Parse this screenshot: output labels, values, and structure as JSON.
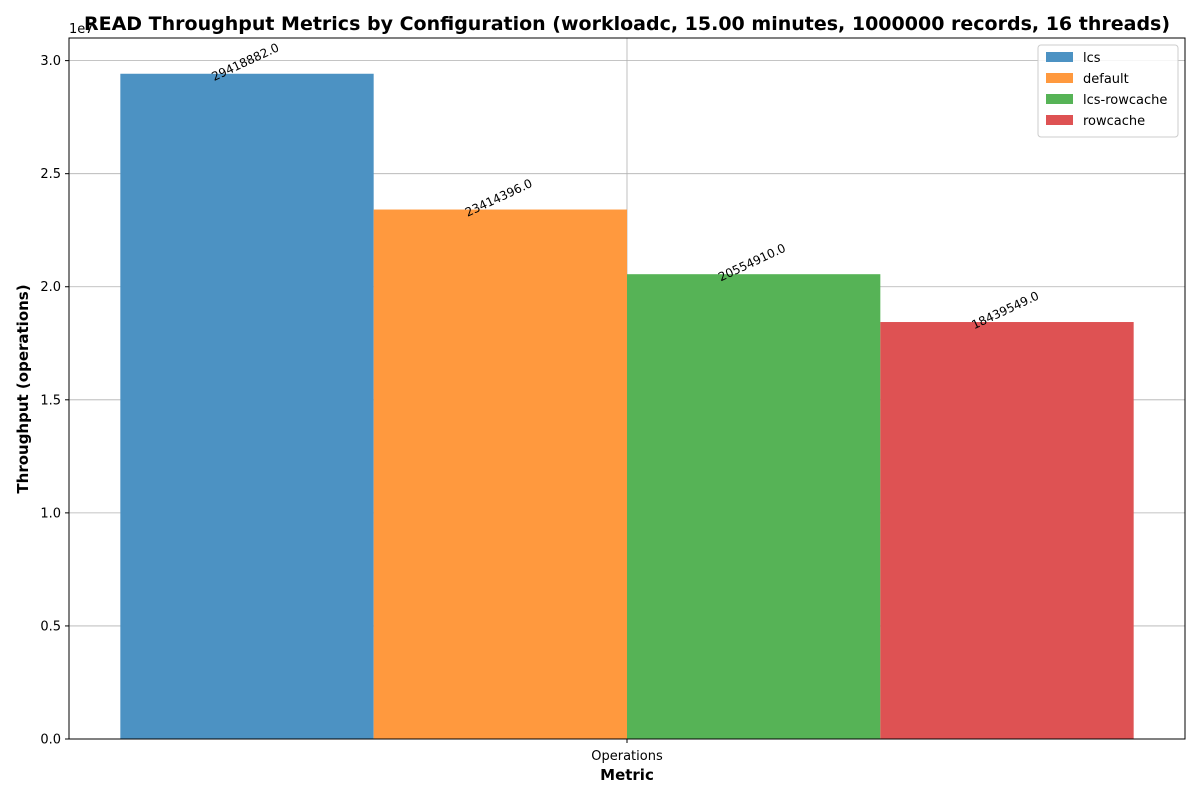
{
  "chart_data": {
    "type": "bar",
    "title": "READ Throughput Metrics by Configuration (workloadc, 15.00 minutes, 1000000 records, 16 threads)",
    "xlabel": "Metric",
    "ylabel": "Throughput (operations)",
    "categories": [
      "Operations"
    ],
    "y_scale_label": "1e7",
    "y_ticks": [
      "0.0",
      "0.5",
      "1.0",
      "1.5",
      "2.0",
      "2.5",
      "3.0"
    ],
    "ylim": [
      0,
      31000000
    ],
    "grid": true,
    "legend_position": "top-right",
    "series": [
      {
        "name": "lcs",
        "values": [
          29418882.0
        ],
        "label": "29418882.0",
        "color": "#4c92c3"
      },
      {
        "name": "default",
        "values": [
          23414396.0
        ],
        "label": "23414396.0",
        "color": "#ff993e"
      },
      {
        "name": "lcs-rowcache",
        "values": [
          20554910.0
        ],
        "label": "20554910.0",
        "color": "#56b356"
      },
      {
        "name": "rowcache",
        "values": [
          18439549.0
        ],
        "label": "18439549.0",
        "color": "#de5253"
      }
    ]
  }
}
